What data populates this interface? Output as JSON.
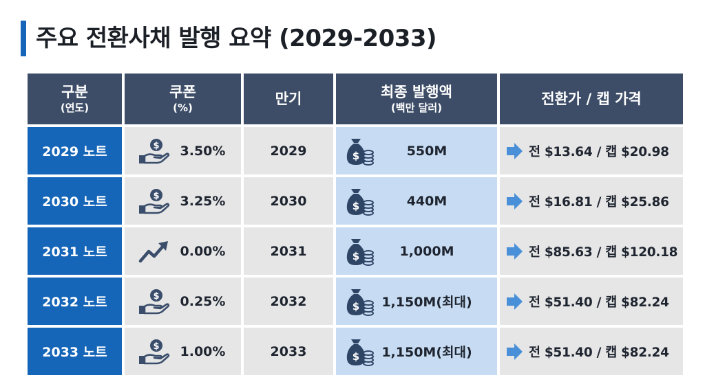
{
  "title": "주요 전환사채 발행 요약 (2029-2033)",
  "headers": {
    "category": {
      "main": "구분",
      "sub": "(연도)"
    },
    "coupon": {
      "main": "쿠폰",
      "sub": "(%)"
    },
    "maturity": {
      "main": "만기",
      "sub": ""
    },
    "issue": {
      "main": "최종 발행액",
      "sub": "(백만 달러)"
    },
    "price": {
      "main": "전환가 / 캡 가격",
      "sub": ""
    }
  },
  "rows": [
    {
      "name": "2029 노트",
      "coupon": "3.50%",
      "coupon_icon": "hand-coin-icon",
      "maturity": "2029",
      "amount": "550M",
      "price": "전 $13.64 / 캡 $20.98"
    },
    {
      "name": "2030 노트",
      "coupon": "3.25%",
      "coupon_icon": "hand-coin-icon",
      "maturity": "2030",
      "amount": "440M",
      "price": "전 $16.81 / 캡 $25.86"
    },
    {
      "name": "2031 노트",
      "coupon": "0.00%",
      "coupon_icon": "trend-up-icon",
      "maturity": "2031",
      "amount": "1,000M",
      "price": "전 $85.63 / 캡 $120.18"
    },
    {
      "name": "2032 노트",
      "coupon": "0.25%",
      "coupon_icon": "hand-coin-icon",
      "maturity": "2032",
      "amount": "1,150M(최대)",
      "price": "전 $51.40 / 캡 $82.24"
    },
    {
      "name": "2033 노트",
      "coupon": "1.00%",
      "coupon_icon": "hand-coin-icon",
      "maturity": "2033",
      "amount": "1,150M(최대)",
      "price": "전 $51.40 / 캡 $82.24"
    }
  ],
  "colors": {
    "accent": "#1565b8",
    "header": "#3d4d67",
    "cell": "#e6e6e6",
    "amount_cell": "#c7dcf2",
    "icon": "#3a4d6b",
    "arrow": "#4a90d9"
  }
}
